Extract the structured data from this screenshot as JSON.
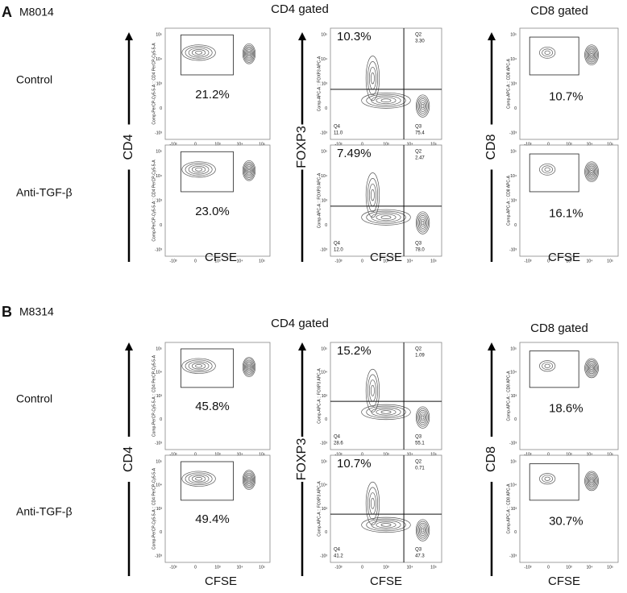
{
  "panels": [
    {
      "letter": "A",
      "sample": "M8014",
      "cd4_header": "CD4 gated",
      "cd8_header": "CD8 gated",
      "rows": [
        {
          "label": "Control",
          "cd4_pct": "21.2%",
          "foxp3_pct": "10.3%",
          "q2": "3.30",
          "q4": "11.0",
          "q3": "75.4",
          "cd8_pct": "10.7%"
        },
        {
          "label": "Anti-TGF-β",
          "cd4_pct": "23.0%",
          "foxp3_pct": "7.49%",
          "q2": "2.47",
          "q4": "12.0",
          "q3": "78.0",
          "cd8_pct": "16.1%"
        }
      ]
    },
    {
      "letter": "B",
      "sample": "M8314",
      "cd4_header": "CD4 gated",
      "cd8_header": "CD8 gated",
      "rows": [
        {
          "label": "Control",
          "cd4_pct": "45.8%",
          "foxp3_pct": "15.2%",
          "q2": "1.09",
          "q4": "28.6",
          "q3": "55.1",
          "cd8_pct": "18.6%"
        },
        {
          "label": "Anti-TGF-β",
          "cd4_pct": "49.4%",
          "foxp3_pct": "10.7%",
          "q2": "0.71",
          "q4": "41.2",
          "q3": "47.3",
          "cd8_pct": "30.7%"
        }
      ]
    }
  ],
  "axis_labels": {
    "cd4": "CD4",
    "foxp3": "FOXP3",
    "cd8": "CD8",
    "cfse": "CFSE"
  },
  "plot_axis_titles": {
    "cd4": "Comp-PerCP-Cy5-5-A :: CD4 PerCP-Cy5-5-A",
    "foxp3": "Comp-APC-A :: FOXP3 APC-A",
    "cd8": "Comp-APC-A :: CD8 APC-A",
    "cfse": "Comp-FITC-A :: CFSE FITC-A"
  },
  "quadrants": {
    "q2": "Q2",
    "q3": "Q3",
    "q4": "Q4"
  },
  "yticks": [
    "10⁵",
    "10⁴",
    "10³",
    "0",
    "-10³"
  ],
  "xticks": [
    "-10³",
    "0",
    "10³",
    "10⁴",
    "10⁵"
  ]
}
